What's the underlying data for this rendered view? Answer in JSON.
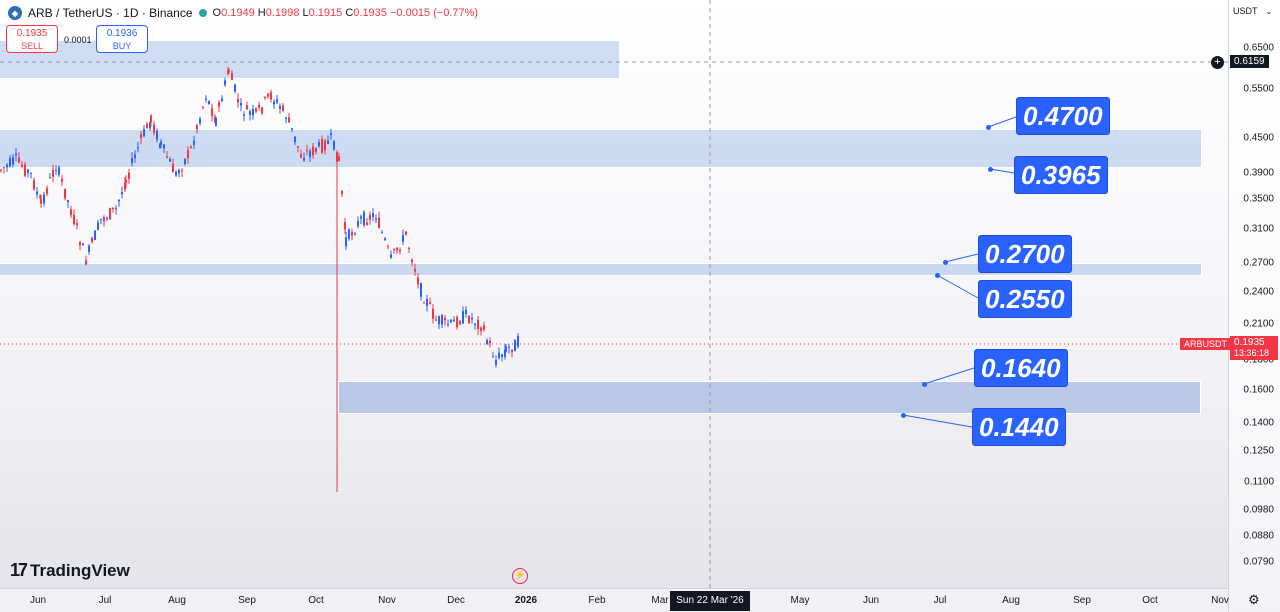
{
  "header": {
    "symbol_title": "ARB / TetherUS · 1D · Binance",
    "open_label": "O",
    "open": "0.1949",
    "high_label": "H",
    "high": "0.1998",
    "low_label": "L",
    "low": "0.1915",
    "close_label": "C",
    "close": "0.1935",
    "change": "−0.0015 (−0.77%)"
  },
  "trade": {
    "sell_price": "0.1935",
    "sell_label": "SELL",
    "spread": "0.0001",
    "buy_price": "0.1936",
    "buy_label": "BUY"
  },
  "price_axis": {
    "currency": "USDT",
    "ticks": [
      "0.6500",
      "0.5500",
      "0.4500",
      "0.3900",
      "0.3500",
      "0.3100",
      "0.2700",
      "0.2400",
      "0.2100",
      "0.1800",
      "0.1600",
      "0.1400",
      "0.1250",
      "0.1100",
      "0.0980",
      "0.0880",
      "0.0790"
    ],
    "crosshair_price": "0.6159",
    "symbol_badge": "ARBUSDT",
    "last_price": "0.1935",
    "countdown": "13:36:18"
  },
  "time_axis": {
    "labels": [
      "Jun",
      "Jul",
      "Aug",
      "Sep",
      "Oct",
      "Nov",
      "Dec",
      "2026",
      "Feb",
      "Mar",
      "May",
      "Jun",
      "Jul",
      "Aug",
      "Sep",
      "Oct",
      "Nov"
    ],
    "crosshair_date": "Sun 22 Mar '26"
  },
  "levels": [
    "0.4700",
    "0.3965",
    "0.2700",
    "0.2550",
    "0.1640",
    "0.1440"
  ],
  "branding": {
    "logo_text": "TradingView"
  },
  "colors": {
    "up": "#2962ff",
    "down": "#f23645",
    "callout": "#2962ff",
    "zone": "#7ba0e1"
  }
}
